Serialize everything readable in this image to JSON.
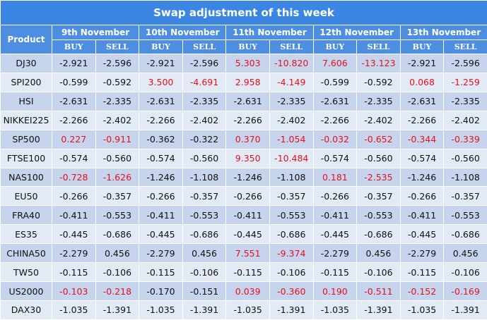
{
  "title": "Swap adjustment of this week",
  "product_header": "Product",
  "dates": [
    "9th  November",
    "10th  November",
    "11th November",
    "12th November",
    "13th November"
  ],
  "side_labels": {
    "buy": "BUY",
    "sell": "SELL"
  },
  "highlight_color": "#e8101a",
  "rows": [
    {
      "product": "DJ30",
      "values": [
        "-2.921",
        "-2.596",
        "-2.921",
        "-2.596",
        "5.303",
        "-10.820",
        "7.606",
        "-13.123",
        "-2.921",
        "-2.596"
      ],
      "highlight": [
        4,
        5,
        6,
        7
      ]
    },
    {
      "product": "SPI200",
      "values": [
        "-0.599",
        "-0.592",
        "3.500",
        "-4.691",
        "2.958",
        "-4.149",
        "-0.599",
        "-0.592",
        "0.068",
        "-1.259"
      ],
      "highlight": [
        2,
        3,
        4,
        5,
        8,
        9
      ]
    },
    {
      "product": "HSI",
      "values": [
        "-2.631",
        "-2.335",
        "-2.631",
        "-2.335",
        "-2.631",
        "-2.335",
        "-2.631",
        "-2.335",
        "-2.631",
        "-2.335"
      ],
      "highlight": []
    },
    {
      "product": "NIKKEI225",
      "values": [
        "-2.266",
        "-2.402",
        "-2.266",
        "-2.402",
        "-2.266",
        "-2.402",
        "-2.266",
        "-2.402",
        "-2.266",
        "-2.402"
      ],
      "highlight": []
    },
    {
      "product": "SP500",
      "values": [
        "0.227",
        "-0.911",
        "-0.362",
        "-0.322",
        "0.370",
        "-1.054",
        "-0.032",
        "-0.652",
        "-0.344",
        "-0.339"
      ],
      "highlight": [
        0,
        1,
        4,
        5,
        6,
        7,
        8,
        9
      ]
    },
    {
      "product": "FTSE100",
      "values": [
        "-0.574",
        "-0.560",
        "-0.574",
        "-0.560",
        "9.350",
        "-10.484",
        "-0.574",
        "-0.560",
        "-0.574",
        "-0.560"
      ],
      "highlight": [
        4,
        5
      ]
    },
    {
      "product": "NAS100",
      "values": [
        "-0.728",
        "-1.626",
        "-1.246",
        "-1.108",
        "-1.246",
        "-1.108",
        "0.181",
        "-2.535",
        "-1.246",
        "-1.108"
      ],
      "highlight": [
        0,
        1,
        6,
        7
      ]
    },
    {
      "product": "EU50",
      "values": [
        "-0.266",
        "-0.357",
        "-0.266",
        "-0.357",
        "-0.266",
        "-0.357",
        "-0.266",
        "-0.357",
        "-0.266",
        "-0.357"
      ],
      "highlight": []
    },
    {
      "product": "FRA40",
      "values": [
        "-0.411",
        "-0.553",
        "-0.411",
        "-0.553",
        "-0.411",
        "-0.553",
        "-0.411",
        "-0.553",
        "-0.411",
        "-0.553"
      ],
      "highlight": []
    },
    {
      "product": "ES35",
      "values": [
        "-0.445",
        "-0.686",
        "-0.445",
        "-0.686",
        "-0.445",
        "-0.686",
        "-0.445",
        "-0.686",
        "-0.445",
        "-0.686"
      ],
      "highlight": []
    },
    {
      "product": "CHINA50",
      "values": [
        "-2.279",
        "0.456",
        "-2.279",
        "0.456",
        "7.551",
        "-9.374",
        "-2.279",
        "0.456",
        "-2.279",
        "0.456"
      ],
      "highlight": [
        4,
        5
      ]
    },
    {
      "product": "TW50",
      "values": [
        "-0.115",
        "-0.106",
        "-0.115",
        "-0.106",
        "-0.115",
        "-0.106",
        "-0.115",
        "-0.106",
        "-0.115",
        "-0.106"
      ],
      "highlight": []
    },
    {
      "product": "US2000",
      "values": [
        "-0.103",
        "-0.218",
        "-0.170",
        "-0.151",
        "0.039",
        "-0.360",
        "0.190",
        "-0.511",
        "-0.152",
        "-0.169"
      ],
      "highlight": [
        0,
        1,
        4,
        5,
        6,
        7,
        8,
        9
      ]
    },
    {
      "product": "DAX30",
      "values": [
        "-1.035",
        "-1.391",
        "-1.035",
        "-1.391",
        "-1.035",
        "-1.391",
        "-1.035",
        "-1.391",
        "-1.035",
        "-1.391"
      ],
      "highlight": []
    }
  ]
}
